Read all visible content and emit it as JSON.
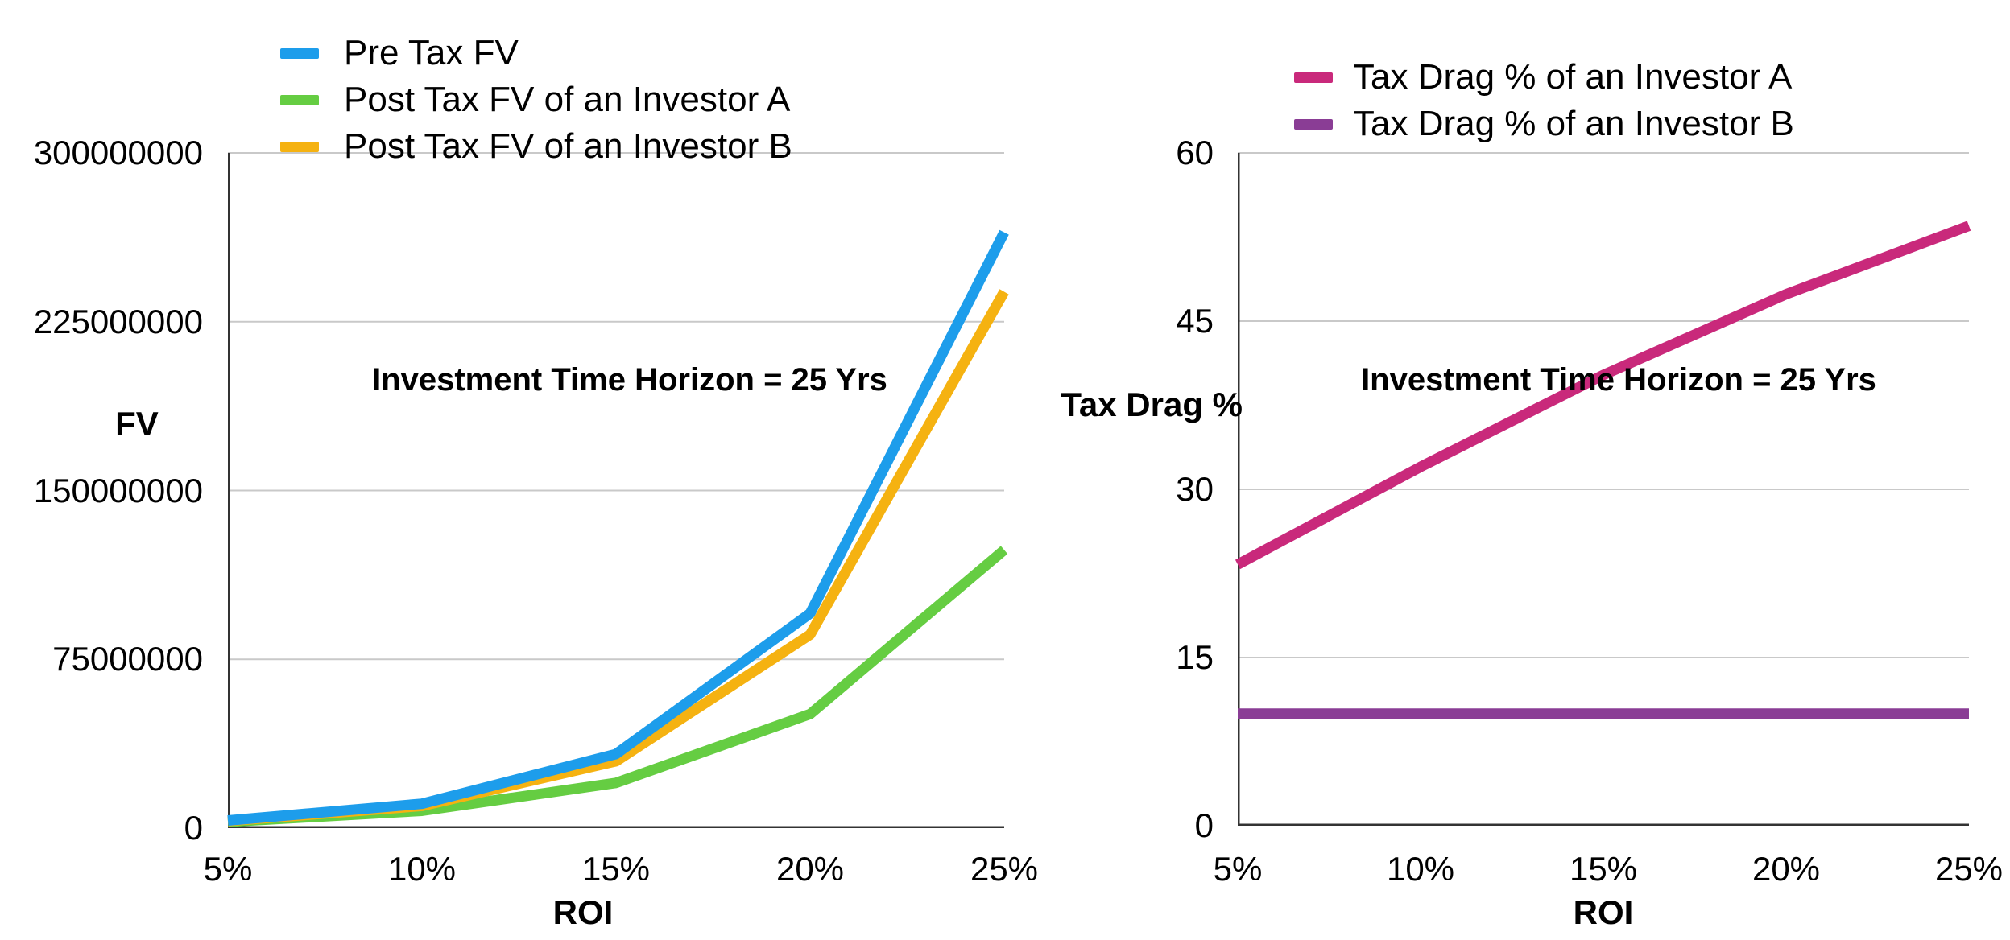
{
  "page": {
    "background": "#FFFFFF"
  },
  "chart_data": [
    {
      "type": "line",
      "title": "",
      "categories": [
        "5%",
        "10%",
        "15%",
        "20%",
        "25%"
      ],
      "series": [
        {
          "name": "Pre Tax FV",
          "color": "#1D9DEB",
          "values": [
            3386355,
            10834706,
            32918953,
            95396217,
            264697796
          ]
        },
        {
          "name": "Post Tax FV of an Investor A",
          "color": "#65CD42",
          "values": [
            2830697,
            7686650,
            20086881,
            50657971,
            123607914
          ]
        },
        {
          "name": "Post Tax FV of an Investor B",
          "color": "#F5B211",
          "values": [
            3147720,
            9851235,
            29727058,
            85956595,
            238328016
          ]
        }
      ],
      "draw_order": [
        1,
        2,
        0
      ],
      "xlabel": "ROI",
      "ylabel": "FV",
      "yticks": [
        "300000000",
        "225000000",
        "150000000",
        "75000000",
        "0"
      ],
      "ylim": [
        0,
        300000000
      ],
      "annotation": "Investment Time Horizon = 25 Yrs",
      "grid": true,
      "grid_color": "#C9C9C9",
      "axis_color": "#333333",
      "legend_position": "top-left"
    },
    {
      "type": "line",
      "title": "",
      "categories": [
        "5%",
        "10%",
        "15%",
        "20%",
        "25%"
      ],
      "series": [
        {
          "name": "Tax Drag % of an Investor A",
          "color": "#C9297B",
          "values": [
            23.3,
            32.0,
            40.2,
            47.4,
            53.5
          ]
        },
        {
          "name": "Tax Drag % of an Investor B",
          "color": "#8A3D95",
          "values": [
            10,
            10,
            10,
            10,
            10
          ]
        }
      ],
      "draw_order": [
        0,
        1
      ],
      "xlabel": "ROI",
      "ylabel": "Tax Drag %",
      "yticks": [
        "60",
        "45",
        "30",
        "15",
        "0"
      ],
      "ylim": [
        0,
        60
      ],
      "annotation": "Investment Time Horizon = 25 Yrs",
      "grid": true,
      "grid_color": "#C9C9C9",
      "axis_color": "#333333",
      "legend_position": "top"
    }
  ]
}
